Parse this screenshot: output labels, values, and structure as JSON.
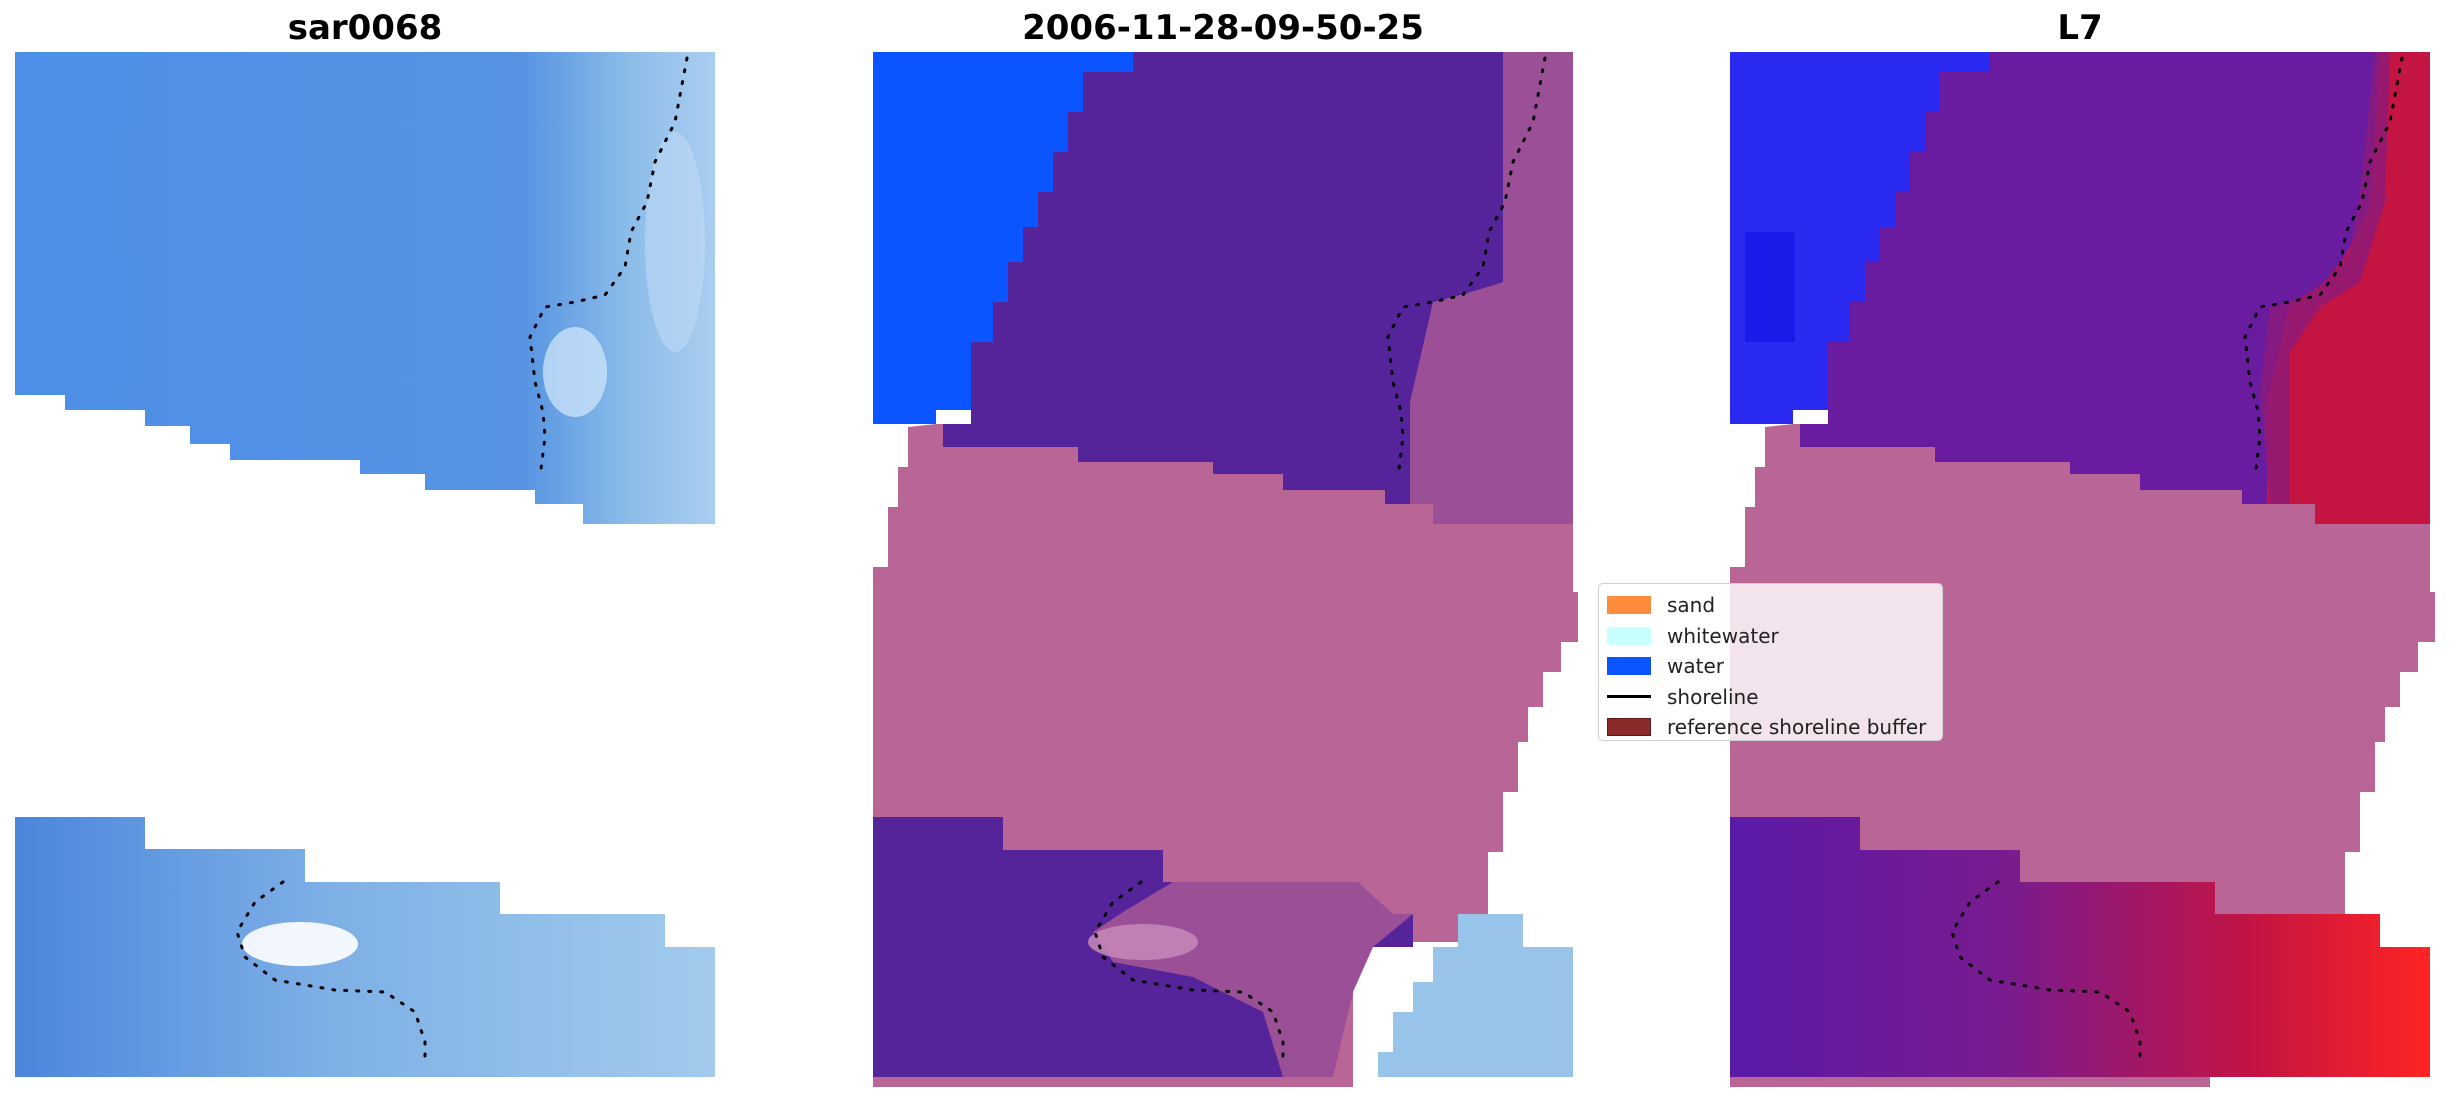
{
  "panels": [
    {
      "title": "sar0068"
    },
    {
      "title": "2006-11-28-09-50-25"
    },
    {
      "title": "L7"
    }
  ],
  "legend": {
    "items": [
      {
        "label": "sand",
        "color": "#ff8c3a",
        "kind": "patch"
      },
      {
        "label": "whitewater",
        "color": "#c8ffff",
        "kind": "patch"
      },
      {
        "label": "water",
        "color": "#0a55ff",
        "kind": "patch"
      },
      {
        "label": "shoreline",
        "color": "#000000",
        "kind": "line"
      },
      {
        "label": "reference shoreline buffer",
        "color": "#8a2a2a",
        "kind": "patch"
      }
    ]
  },
  "colors": {
    "rgb_water": "#4e8ee6",
    "rgb_surf": "#a9cdf0",
    "class_water": "#0a55ff",
    "class_overlay": "#55239a",
    "class_buffer": "#b96696",
    "class_mix": "#9a4f96",
    "l7_red": "#c41442",
    "l7_blue": "#2a2af0"
  }
}
